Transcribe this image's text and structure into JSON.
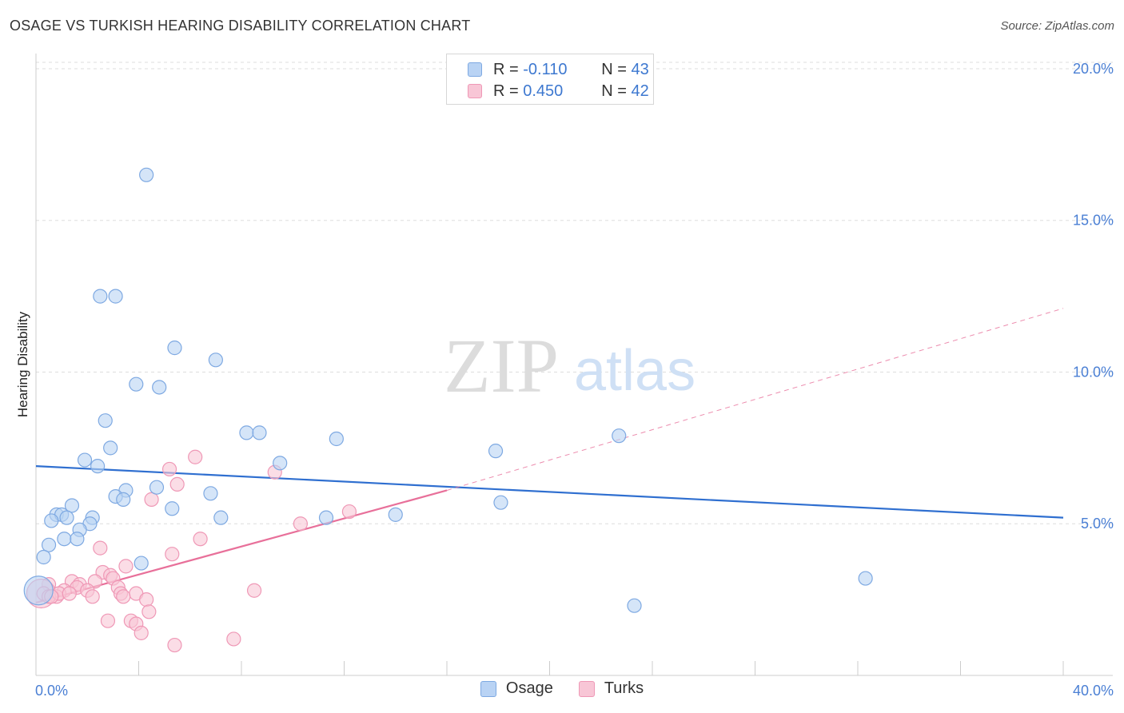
{
  "title": "OSAGE VS TURKISH HEARING DISABILITY CORRELATION CHART",
  "source": "Source: ZipAtlas.com",
  "watermark": {
    "zip": "ZIP",
    "atlas": "atlas"
  },
  "legend": {
    "rows": [
      {
        "r_label": "R = ",
        "r_value": "-0.110",
        "n_label": "N = ",
        "n_value": "43"
      },
      {
        "r_label": "R = ",
        "r_value": "0.450",
        "n_label": "N = ",
        "n_value": "42"
      }
    ]
  },
  "bottom_legend": [
    "Osage",
    "Turks"
  ],
  "colors": {
    "osage_fill": "#b9d3f4",
    "osage_stroke": "#7ea9e2",
    "osage_line": "#2f6fd0",
    "turks_fill": "#f8c6d6",
    "turks_stroke": "#ef98b6",
    "turks_line": "#e8709a",
    "grid": "#dddddd",
    "tick_text": "#4a7fd4"
  },
  "chart_data": {
    "type": "scatter",
    "title": "OSAGE VS TURKISH HEARING DISABILITY CORRELATION CHART",
    "xlabel": "",
    "ylabel": "Hearing Disability",
    "xlim": [
      0,
      40
    ],
    "ylim": [
      0,
      20.5
    ],
    "x_tick_labels": [
      "0.0%",
      "40.0%"
    ],
    "y_ticks": [
      5,
      10,
      15,
      20
    ],
    "y_tick_labels": [
      "5.0%",
      "10.0%",
      "15.0%",
      "20.0%"
    ],
    "series": [
      {
        "name": "Osage",
        "r": -0.11,
        "n": 43,
        "trend": {
          "x": [
            0,
            40
          ],
          "y": [
            6.9,
            5.2
          ],
          "dashed_after": null
        },
        "points": [
          [
            4.3,
            16.5
          ],
          [
            2.5,
            12.5
          ],
          [
            3.1,
            12.5
          ],
          [
            5.4,
            10.8
          ],
          [
            7.0,
            10.4
          ],
          [
            3.9,
            9.6
          ],
          [
            4.8,
            9.5
          ],
          [
            2.7,
            8.4
          ],
          [
            8.2,
            8.0
          ],
          [
            8.7,
            8.0
          ],
          [
            11.7,
            7.8
          ],
          [
            22.7,
            7.9
          ],
          [
            2.9,
            7.5
          ],
          [
            17.9,
            7.4
          ],
          [
            1.9,
            7.1
          ],
          [
            9.5,
            7.0
          ],
          [
            2.4,
            6.9
          ],
          [
            3.5,
            6.1
          ],
          [
            4.7,
            6.2
          ],
          [
            6.8,
            6.0
          ],
          [
            3.1,
            5.9
          ],
          [
            3.4,
            5.8
          ],
          [
            18.1,
            5.7
          ],
          [
            1.4,
            5.6
          ],
          [
            5.3,
            5.5
          ],
          [
            0.8,
            5.3
          ],
          [
            1.0,
            5.3
          ],
          [
            2.2,
            5.2
          ],
          [
            1.2,
            5.2
          ],
          [
            7.2,
            5.2
          ],
          [
            11.3,
            5.2
          ],
          [
            14.0,
            5.3
          ],
          [
            0.6,
            5.1
          ],
          [
            2.1,
            5.0
          ],
          [
            1.7,
            4.8
          ],
          [
            1.1,
            4.5
          ],
          [
            1.6,
            4.5
          ],
          [
            0.5,
            4.3
          ],
          [
            0.3,
            3.9
          ],
          [
            4.1,
            3.7
          ],
          [
            32.3,
            3.2
          ],
          [
            23.3,
            2.3
          ],
          [
            0.1,
            2.8
          ]
        ]
      },
      {
        "name": "Turks",
        "r": 0.45,
        "n": 42,
        "trend": {
          "x": [
            0,
            16,
            40
          ],
          "y": [
            2.4,
            6.1,
            12.1
          ],
          "dashed_after": 16
        },
        "points": [
          [
            6.2,
            7.2
          ],
          [
            5.2,
            6.8
          ],
          [
            9.3,
            6.7
          ],
          [
            5.5,
            6.3
          ],
          [
            4.5,
            5.8
          ],
          [
            12.2,
            5.4
          ],
          [
            10.3,
            5.0
          ],
          [
            6.4,
            4.5
          ],
          [
            2.5,
            4.2
          ],
          [
            5.3,
            4.0
          ],
          [
            3.5,
            3.6
          ],
          [
            2.6,
            3.4
          ],
          [
            2.9,
            3.3
          ],
          [
            3.0,
            3.2
          ],
          [
            1.4,
            3.1
          ],
          [
            2.3,
            3.1
          ],
          [
            1.7,
            3.0
          ],
          [
            0.5,
            3.0
          ],
          [
            1.6,
            2.9
          ],
          [
            3.2,
            2.9
          ],
          [
            2.0,
            2.8
          ],
          [
            1.1,
            2.8
          ],
          [
            0.2,
            2.7
          ],
          [
            0.3,
            2.7
          ],
          [
            3.3,
            2.7
          ],
          [
            3.9,
            2.7
          ],
          [
            2.2,
            2.6
          ],
          [
            0.8,
            2.6
          ],
          [
            0.5,
            2.6
          ],
          [
            0.9,
            2.7
          ],
          [
            3.4,
            2.6
          ],
          [
            1.3,
            2.7
          ],
          [
            0.6,
            2.6
          ],
          [
            8.5,
            2.8
          ],
          [
            4.3,
            2.5
          ],
          [
            4.4,
            2.1
          ],
          [
            2.8,
            1.8
          ],
          [
            3.7,
            1.8
          ],
          [
            3.9,
            1.7
          ],
          [
            4.1,
            1.4
          ],
          [
            7.7,
            1.2
          ],
          [
            5.4,
            1.0
          ]
        ]
      }
    ]
  }
}
